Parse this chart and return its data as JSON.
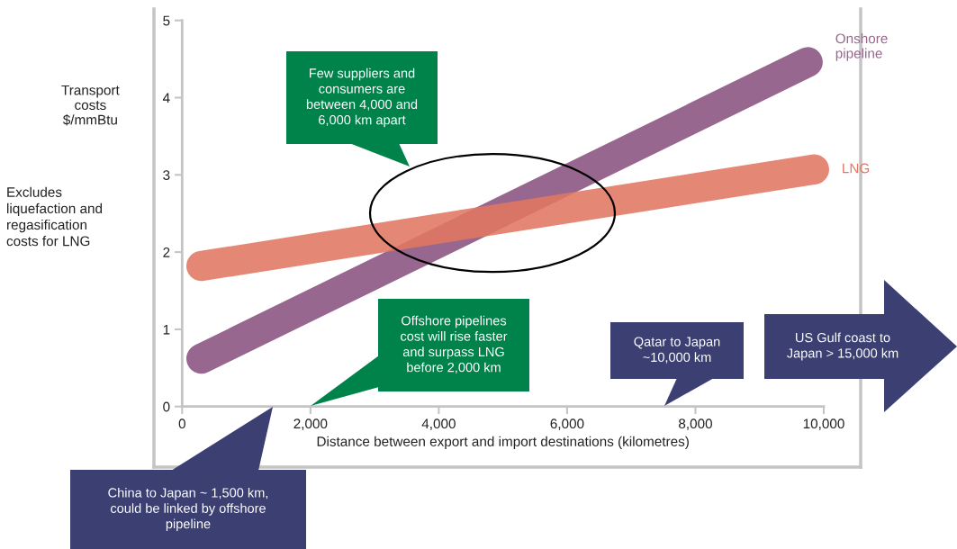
{
  "chart_data": {
    "type": "line",
    "xlabel": "Distance between export and import destinations (kilometres)",
    "ylabel": "Transport\ncosts\n$/mmBtu",
    "xlim": [
      0,
      10000
    ],
    "ylim": [
      0,
      5
    ],
    "xticks": [
      0,
      {
        "value": 2000,
        "label": "2,000"
      },
      {
        "value": 4000,
        "label": "4,000"
      },
      {
        "value": 6000,
        "label": "6,000"
      },
      {
        "value": 8000,
        "label": "8,000"
      },
      {
        "value": 10000,
        "label": "10,000"
      }
    ],
    "yticks": [
      0,
      1,
      2,
      3,
      4,
      5
    ],
    "line_style": "solid",
    "series": [
      {
        "name": "Onshore\npipeline",
        "color": "#98678f",
        "x": [
          300,
          9750
        ],
        "values": [
          0.62,
          4.46
        ]
      },
      {
        "name": "LNG",
        "color": "#e07762",
        "x": [
          300,
          9850
        ],
        "values": [
          1.82,
          3.07
        ]
      }
    ],
    "annotations": [
      "Few suppliers and\nconsumers are\nbetween 4,000 and\n6,000 km apart",
      "Offshore pipelines\ncost will rise faster\nand surpass LNG\nbefore 2,000 km",
      "Qatar to Japan\n~10,000 km",
      "US Gulf coast to\nJapan > 15,000 km",
      "China to Japan ~ 1,500 km,\ncould be linked by offshore\npipeline",
      "Excludes\nliquefaction and\nregasification\ncosts for LNG"
    ]
  }
}
